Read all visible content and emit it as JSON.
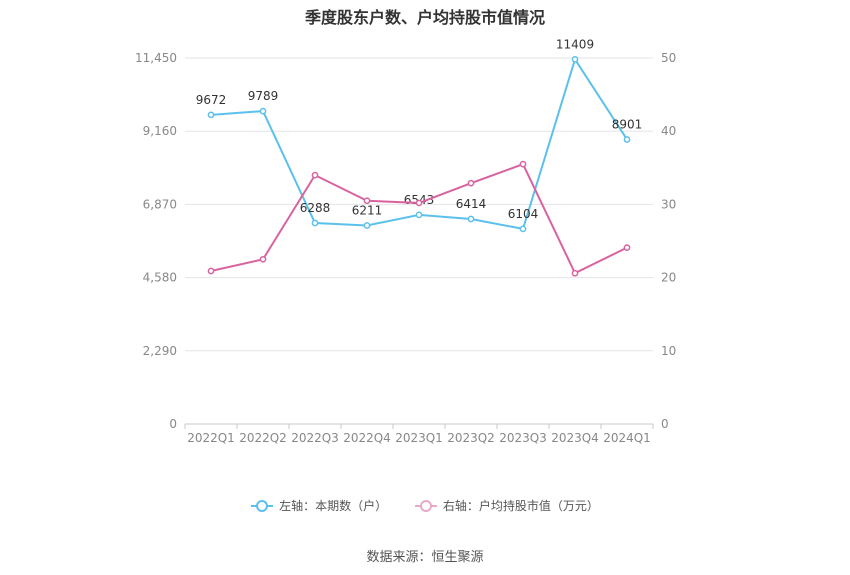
{
  "chart_data": {
    "type": "line",
    "title": "季度股东户数、户均持股市值情况",
    "categories": [
      "2022Q1",
      "2022Q2",
      "2022Q3",
      "2022Q4",
      "2023Q1",
      "2023Q2",
      "2023Q3",
      "2023Q4",
      "2024Q1"
    ],
    "series": [
      {
        "name": "左轴：本期数（户）",
        "axis": "left",
        "color": "#5bc0eb",
        "values": [
          9672,
          9789,
          6288,
          6211,
          6543,
          6414,
          6104,
          11409,
          8901
        ],
        "labels": [
          "9672",
          "9789",
          "6288",
          "6211",
          "6543",
          "6414",
          "6104",
          "11409",
          "8901"
        ]
      },
      {
        "name": "右轴：户均持股市值（万元）",
        "axis": "right",
        "color": "#d9639f",
        "values": [
          20.9,
          22.5,
          34.0,
          30.5,
          30.2,
          32.9,
          35.5,
          20.6,
          24.1
        ]
      }
    ],
    "left_axis": {
      "ylim": [
        0,
        11450
      ],
      "ticks": [
        "0",
        "2,290",
        "4,580",
        "6,870",
        "9,160",
        "11,450"
      ]
    },
    "right_axis": {
      "ylim": [
        0,
        50
      ],
      "ticks": [
        "0",
        "10",
        "20",
        "30",
        "40",
        "50"
      ]
    },
    "grid": true,
    "legend_position": "bottom"
  },
  "source": "数据来源：恒生聚源"
}
